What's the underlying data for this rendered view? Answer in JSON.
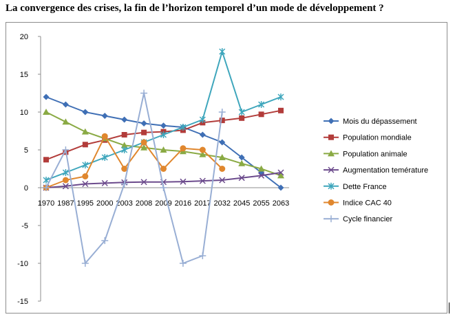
{
  "title": "La convergence des crises, la fin de l’horizon temporel d’un mode de développement ?",
  "chart_data": {
    "type": "line",
    "title": "La convergence des crises, la fin de l’horizon temporel d’un mode de développement ?",
    "xlabel": "",
    "ylabel": "",
    "ylim": [
      -15,
      20
    ],
    "yticks": [
      -15,
      -10,
      -5,
      0,
      5,
      10,
      15,
      20
    ],
    "grid": false,
    "legend": "right",
    "categories": [
      "1970",
      "1987",
      "1995",
      "2000",
      "2003",
      "2008",
      "2009",
      "2016",
      "2017",
      "2032",
      "2045",
      "2055",
      "2063"
    ],
    "series": [
      {
        "name": "Mois du dépassement",
        "color": "#3f6fb5",
        "marker": "diamond",
        "values": [
          12,
          11,
          10,
          9.5,
          9,
          8.5,
          8.2,
          8,
          7,
          6,
          4,
          2,
          0
        ]
      },
      {
        "name": "Population mondiale",
        "color": "#b23c3a",
        "marker": "square",
        "values": [
          3.7,
          4.7,
          5.7,
          6.3,
          7,
          7.3,
          7.4,
          7.6,
          8.6,
          8.9,
          9.2,
          9.7,
          10.2
        ]
      },
      {
        "name": "Population animale",
        "color": "#8aaa44",
        "marker": "triangle",
        "values": [
          10,
          8.7,
          7.4,
          6.5,
          5.6,
          5.3,
          5,
          4.8,
          4.4,
          4,
          3.2,
          2.5,
          1.6
        ]
      },
      {
        "name": "Augmentation temérature",
        "color": "#6b4a8c",
        "marker": "x",
        "values": [
          0,
          0.2,
          0.5,
          0.6,
          0.7,
          0.75,
          0.75,
          0.8,
          0.9,
          1,
          1.3,
          1.6,
          2
        ]
      },
      {
        "name": "Dette France",
        "color": "#3ea6bc",
        "marker": "star",
        "values": [
          1,
          2,
          3,
          4,
          5,
          6,
          7,
          8,
          9,
          18,
          10,
          11,
          12
        ]
      },
      {
        "name": "Indice CAC 40",
        "color": "#e0872e",
        "marker": "circle",
        "values": [
          0,
          1,
          1.5,
          6.8,
          2.5,
          6,
          2.5,
          5.2,
          5,
          2.5,
          null,
          null,
          null
        ]
      },
      {
        "name": "Cycle financier",
        "color": "#98aed4",
        "marker": "plus",
        "values": [
          0,
          5,
          -10,
          -7,
          0.5,
          12.5,
          0,
          -10,
          -9,
          10,
          null,
          null,
          null
        ]
      }
    ]
  }
}
